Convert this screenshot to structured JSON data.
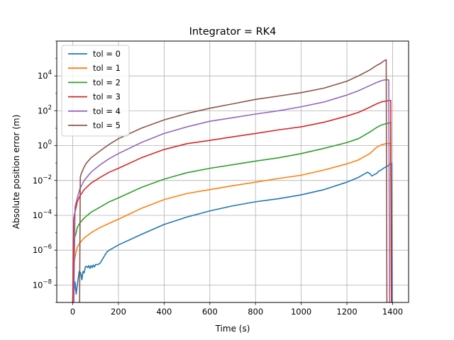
{
  "chart_data": {
    "type": "line",
    "title": "Integrator = RK4",
    "xlabel": "Time (s)",
    "ylabel": "Absolute position error (m)",
    "xlim": [
      -70,
      1470
    ],
    "ylim": [
      1e-09,
      1000000.0
    ],
    "yscale": "log",
    "grid": true,
    "legend_position": "top-left",
    "x_ticks": [
      0,
      200,
      400,
      600,
      800,
      1000,
      1200,
      1400
    ],
    "x_tick_labels": [
      "0",
      "200",
      "400",
      "600",
      "800",
      "1000",
      "1200",
      "1400"
    ],
    "y_ticks": [
      1e-08,
      1e-06,
      0.0001,
      0.01,
      1,
      100,
      10000
    ],
    "y_tick_labels": [
      {
        "base": "10",
        "exp": "−8"
      },
      {
        "base": "10",
        "exp": "−6"
      },
      {
        "base": "10",
        "exp": "−4"
      },
      {
        "base": "10",
        "exp": "−2"
      },
      {
        "base": "10",
        "exp": "0"
      },
      {
        "base": "10",
        "exp": "2"
      },
      {
        "base": "10",
        "exp": "4"
      }
    ],
    "series": [
      {
        "name": "tol = 0",
        "color": "#1f77b4",
        "x": [
          0,
          10,
          15,
          20,
          28,
          35,
          40,
          45,
          50,
          55,
          60,
          65,
          70,
          75,
          80,
          85,
          90,
          95,
          100,
          110,
          120,
          130,
          140,
          150,
          160,
          200,
          300,
          400,
          500,
          600,
          700,
          800,
          900,
          1000,
          1100,
          1200,
          1250,
          1280,
          1290,
          1300,
          1310,
          1320,
          1330,
          1340,
          1350,
          1360,
          1370,
          1380,
          1390,
          1395,
          1398,
          1400
        ],
        "y": [
          1e-09,
          1.5e-08,
          3e-09,
          1e-08,
          6e-08,
          5e-08,
          2e-08,
          6e-08,
          5e-08,
          1.1e-07,
          1.2e-07,
          1e-07,
          1.3e-07,
          9e-08,
          1.3e-07,
          1e-07,
          1.4e-07,
          1.1e-07,
          1.5e-07,
          1.5e-07,
          1.8e-07,
          3e-07,
          5e-07,
          8e-07,
          1e-06,
          2e-06,
          8e-06,
          3e-05,
          8e-05,
          0.00018,
          0.00035,
          0.0006,
          0.0009,
          0.0015,
          0.003,
          0.008,
          0.015,
          0.025,
          0.03,
          0.025,
          0.018,
          0.022,
          0.025,
          0.035,
          0.04,
          0.05,
          0.06,
          0.07,
          0.09,
          0.1,
          1e-09,
          1e-09
        ]
      },
      {
        "name": "tol = 1",
        "color": "#ff7f0e",
        "x": [
          0,
          4,
          8,
          15,
          20,
          30,
          50,
          80,
          120,
          160,
          200,
          300,
          400,
          500,
          600,
          700,
          800,
          900,
          1000,
          1100,
          1200,
          1250,
          1300,
          1330,
          1350,
          1370,
          1385,
          1392,
          1395,
          1400
        ],
        "y": [
          1e-09,
          1e-07,
          3e-07,
          8e-07,
          1.5e-06,
          2.5e-06,
          5e-06,
          1e-05,
          2e-05,
          3.5e-05,
          6e-05,
          0.00025,
          0.0008,
          0.0018,
          0.003,
          0.005,
          0.008,
          0.013,
          0.02,
          0.04,
          0.09,
          0.15,
          0.35,
          0.8,
          1.1,
          1.3,
          1.35,
          1.3,
          1e-09,
          1e-09
        ]
      },
      {
        "name": "tol = 2",
        "color": "#2ca02c",
        "x": [
          0,
          4,
          8,
          15,
          20,
          30,
          50,
          80,
          120,
          160,
          200,
          300,
          400,
          500,
          600,
          700,
          800,
          900,
          1000,
          1100,
          1200,
          1250,
          1300,
          1330,
          1350,
          1370,
          1385,
          1392,
          1395,
          1400
        ],
        "y": [
          1e-09,
          2e-06,
          5e-06,
          1e-05,
          2e-05,
          3.5e-05,
          7e-05,
          0.00015,
          0.0003,
          0.0006,
          0.001,
          0.004,
          0.012,
          0.028,
          0.05,
          0.08,
          0.13,
          0.2,
          0.35,
          0.7,
          1.5,
          2.5,
          6,
          11,
          15,
          18,
          20,
          21,
          1e-09,
          1e-09
        ]
      },
      {
        "name": "tol = 3",
        "color": "#d62728",
        "x": [
          0,
          4,
          8,
          15,
          20,
          30,
          50,
          80,
          120,
          160,
          200,
          300,
          400,
          500,
          600,
          700,
          800,
          900,
          1000,
          1100,
          1200,
          1250,
          1300,
          1330,
          1350,
          1370,
          1385,
          1392,
          1395,
          1400
        ],
        "y": [
          1e-09,
          6e-05,
          0.00012,
          0.0003,
          0.0006,
          0.0012,
          0.003,
          0.007,
          0.015,
          0.03,
          0.05,
          0.2,
          0.6,
          1.3,
          2,
          3.2,
          5,
          8,
          12,
          22,
          50,
          80,
          160,
          250,
          320,
          360,
          380,
          390,
          1e-09,
          1e-09
        ]
      },
      {
        "name": "tol = 4",
        "color": "#9467bd",
        "x": [
          5,
          10,
          12,
          20,
          30,
          50,
          80,
          120,
          160,
          200,
          300,
          400,
          500,
          600,
          700,
          800,
          900,
          1000,
          1100,
          1200,
          1250,
          1300,
          1330,
          1350,
          1365,
          1375,
          1383,
          1387,
          1392
        ],
        "y": [
          1e-09,
          0.0003,
          0.0004,
          0.001,
          0.003,
          0.01,
          0.03,
          0.08,
          0.18,
          0.35,
          1.5,
          5,
          12,
          25,
          40,
          65,
          100,
          170,
          320,
          800,
          1400,
          2800,
          4200,
          5300,
          5900,
          6000,
          6000,
          1e-09,
          1e-09
        ]
      },
      {
        "name": "tol = 5",
        "color": "#8c564b",
        "x": [
          30,
          33,
          35,
          40,
          50,
          60,
          80,
          120,
          160,
          200,
          300,
          400,
          500,
          600,
          700,
          800,
          900,
          1000,
          1100,
          1200,
          1250,
          1300,
          1330,
          1350,
          1360,
          1368,
          1372,
          1375
        ],
        "y": [
          1e-09,
          0.015,
          0.02,
          0.03,
          0.06,
          0.1,
          0.2,
          0.5,
          1.2,
          2.5,
          10,
          30,
          70,
          140,
          250,
          450,
          700,
          1100,
          2000,
          5000,
          10000,
          22000,
          40000,
          55000,
          70000,
          80000,
          85000,
          1e-09
        ]
      }
    ]
  }
}
